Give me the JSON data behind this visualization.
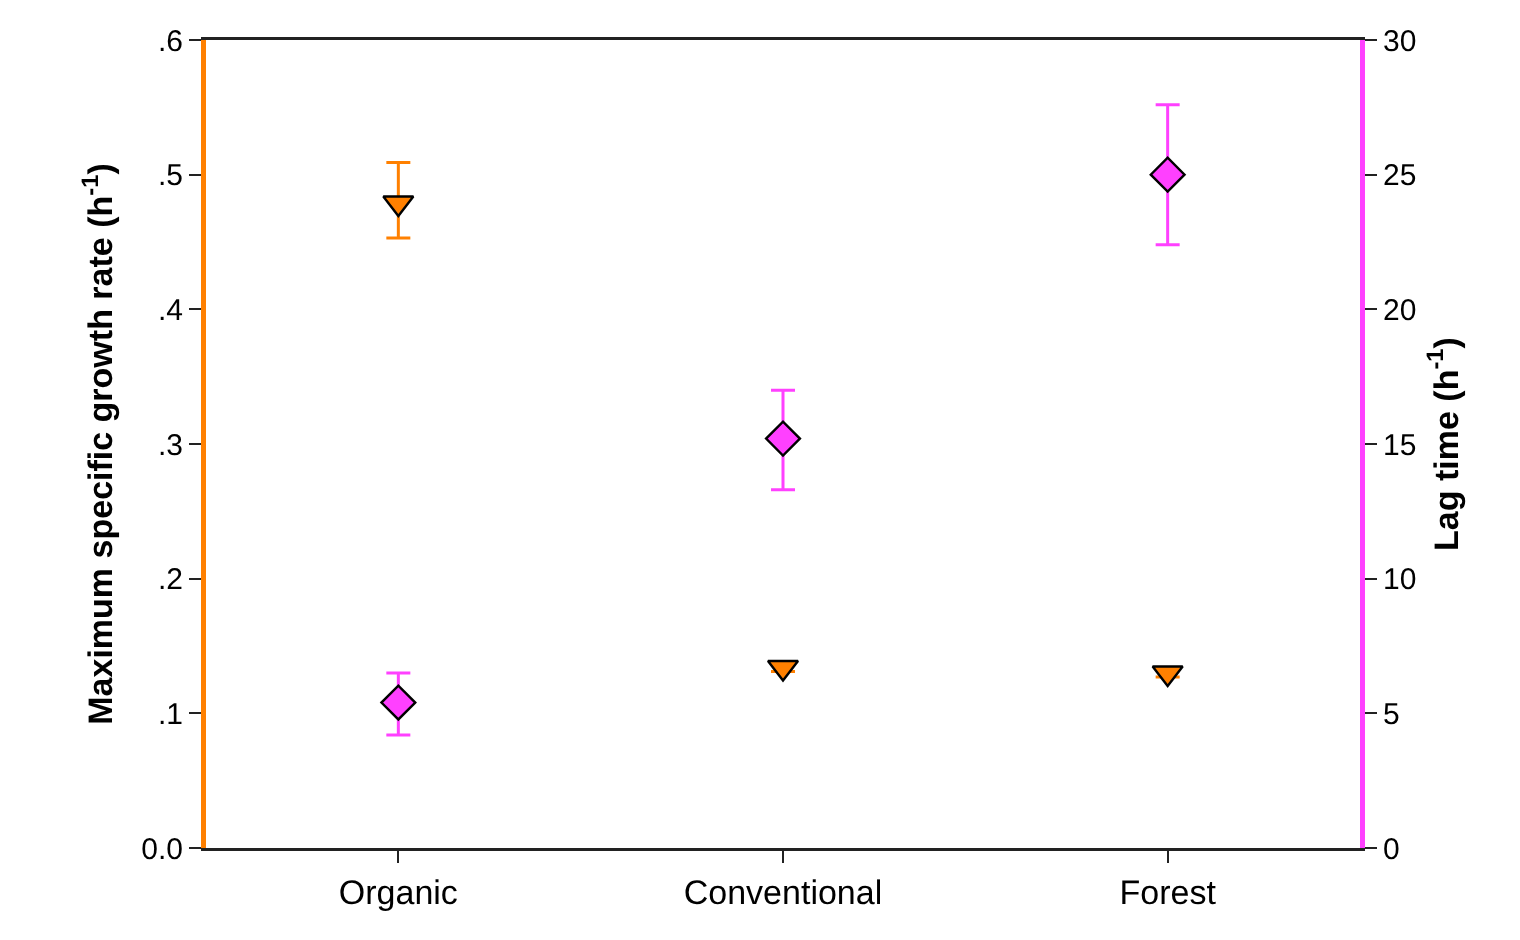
{
  "chart_data": {
    "type": "scatter",
    "categories": [
      "Organic",
      "Conventional",
      "Forest"
    ],
    "ylabel": "Maximum specific growth rate (h$^{-1}$)",
    "y2label": "Lag time (h$^{-1}$)",
    "ylim": [
      0,
      0.6
    ],
    "yticks": [
      {
        "value": 0,
        "label": "0.0"
      },
      {
        "value": 0.1,
        "label": ".1"
      },
      {
        "value": 0.2,
        "label": ".2"
      },
      {
        "value": 0.3,
        "label": ".3"
      },
      {
        "value": 0.4,
        "label": ".4"
      },
      {
        "value": 0.5,
        "label": ".5"
      },
      {
        "value": 0.6,
        "label": ".6"
      }
    ],
    "y2lim": [
      0,
      30
    ],
    "y2ticks": [
      0,
      5,
      10,
      15,
      20,
      25,
      30
    ],
    "series": [
      {
        "color": "#ff8000",
        "marker": "triangle",
        "values": [
          0.479,
          0.134,
          0.13
        ],
        "errors": [
          [
            0.453,
            0.509
          ],
          [
            0.131,
            0.137
          ],
          [
            0.127,
            0.133
          ]
        ]
      },
      {
        "color": "#ff40ff",
        "marker": "diamond",
        "axis": "y2",
        "values": [
          5.4,
          15.2,
          25.0
        ],
        "errors": [
          [
            4.2,
            6.5
          ],
          [
            13.3,
            17.0
          ],
          [
            22.4,
            27.6
          ]
        ]
      }
    ]
  }
}
